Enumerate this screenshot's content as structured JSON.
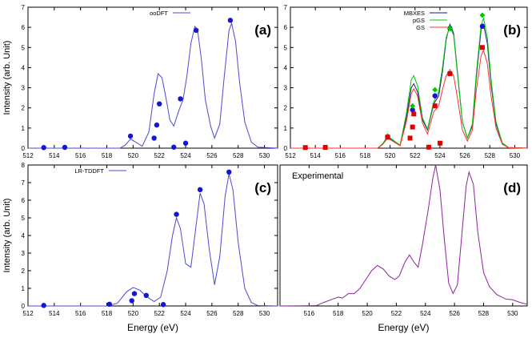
{
  "chart_data": [
    {
      "id": "a",
      "type": "line",
      "panel_label": "(a)",
      "xlabel": "",
      "ylabel": "Intensity (arb. Unit)",
      "xlim": [
        512,
        531
      ],
      "ylim": [
        0,
        7
      ],
      "xticks": [
        512,
        514,
        516,
        518,
        520,
        522,
        524,
        526,
        528,
        530
      ],
      "yticks": [
        0,
        1,
        2,
        3,
        4,
        5,
        6,
        7
      ],
      "legend_position": "top-right",
      "series": [
        {
          "name": "ooDFT",
          "kind": "line",
          "color": "#4a4ad6",
          "points": [
            [
              512,
              0
            ],
            [
              519,
              0
            ],
            [
              519.4,
              0.15
            ],
            [
              519.8,
              0.45
            ],
            [
              520.2,
              0.3
            ],
            [
              520.7,
              0.1
            ],
            [
              521.2,
              0.8
            ],
            [
              521.6,
              2.7
            ],
            [
              521.9,
              3.7
            ],
            [
              522.2,
              3.5
            ],
            [
              522.5,
              2.5
            ],
            [
              522.8,
              1.4
            ],
            [
              523.1,
              1.1
            ],
            [
              523.5,
              1.9
            ],
            [
              523.8,
              2.4
            ],
            [
              524.1,
              3.6
            ],
            [
              524.4,
              5.2
            ],
            [
              524.7,
              6.05
            ],
            [
              524.9,
              5.9
            ],
            [
              525.2,
              4.4
            ],
            [
              525.5,
              2.4
            ],
            [
              525.9,
              1.1
            ],
            [
              526.2,
              0.5
            ],
            [
              526.6,
              1.2
            ],
            [
              526.9,
              3.3
            ],
            [
              527.3,
              5.85
            ],
            [
              527.5,
              6.2
            ],
            [
              527.8,
              5.3
            ],
            [
              528.1,
              3.3
            ],
            [
              528.5,
              1.3
            ],
            [
              529,
              0.3
            ],
            [
              529.5,
              0.05
            ],
            [
              531,
              0
            ]
          ]
        },
        {
          "name": "ooDFT sticks",
          "kind": "scatter",
          "color": "#1515d6",
          "shape": "circle",
          "points": [
            [
              513.2,
              0.03
            ],
            [
              514.8,
              0.04
            ],
            [
              519.8,
              0.6
            ],
            [
              521.6,
              0.5
            ],
            [
              521.8,
              1.15
            ],
            [
              522.0,
              2.2
            ],
            [
              523.1,
              0.05
            ],
            [
              523.6,
              2.45
            ],
            [
              524.0,
              0.25
            ],
            [
              524.8,
              5.85
            ],
            [
              527.4,
              6.35
            ]
          ]
        }
      ]
    },
    {
      "id": "b",
      "type": "line",
      "panel_label": "(b)",
      "xlabel": "",
      "ylabel": "",
      "xlim": [
        512,
        531
      ],
      "ylim": [
        0,
        7
      ],
      "xticks": [
        512,
        514,
        516,
        518,
        520,
        522,
        524,
        526,
        528,
        530
      ],
      "yticks": [
        0,
        1,
        2,
        3,
        4,
        5,
        6,
        7
      ],
      "legend_position": "top-right",
      "series": [
        {
          "name": "MBXES",
          "kind": "line",
          "color": "#1a1a80",
          "points": [
            [
              512,
              0
            ],
            [
              519,
              0
            ],
            [
              519.4,
              0.2
            ],
            [
              519.8,
              0.55
            ],
            [
              520.2,
              0.4
            ],
            [
              520.8,
              0.15
            ],
            [
              521.3,
              1.5
            ],
            [
              521.7,
              3.0
            ],
            [
              521.9,
              3.2
            ],
            [
              522.2,
              2.8
            ],
            [
              522.6,
              1.4
            ],
            [
              523.0,
              0.9
            ],
            [
              523.5,
              2.2
            ],
            [
              523.9,
              2.6
            ],
            [
              524.2,
              3.8
            ],
            [
              524.5,
              5.4
            ],
            [
              524.8,
              6.15
            ],
            [
              525.1,
              5.7
            ],
            [
              525.4,
              3.8
            ],
            [
              525.8,
              1.3
            ],
            [
              526.2,
              0.5
            ],
            [
              526.6,
              1.1
            ],
            [
              526.9,
              3.4
            ],
            [
              527.3,
              5.9
            ],
            [
              527.5,
              6.15
            ],
            [
              527.8,
              5.2
            ],
            [
              528.1,
              3.2
            ],
            [
              528.5,
              1.2
            ],
            [
              529,
              0.25
            ],
            [
              529.5,
              0.03
            ],
            [
              531,
              0
            ]
          ]
        },
        {
          "name": "pGS",
          "kind": "line",
          "color": "#00c800",
          "points": [
            [
              512,
              0
            ],
            [
              519,
              0
            ],
            [
              519.4,
              0.22
            ],
            [
              519.8,
              0.6
            ],
            [
              520.2,
              0.42
            ],
            [
              520.8,
              0.15
            ],
            [
              521.3,
              1.7
            ],
            [
              521.7,
              3.4
            ],
            [
              521.9,
              3.6
            ],
            [
              522.2,
              3.1
            ],
            [
              522.6,
              1.5
            ],
            [
              523.0,
              0.95
            ],
            [
              523.5,
              2.3
            ],
            [
              523.9,
              2.8
            ],
            [
              524.2,
              4.0
            ],
            [
              524.5,
              5.5
            ],
            [
              524.8,
              6.05
            ],
            [
              525.1,
              5.6
            ],
            [
              525.4,
              3.7
            ],
            [
              525.8,
              1.3
            ],
            [
              526.2,
              0.5
            ],
            [
              526.6,
              1.2
            ],
            [
              526.9,
              3.6
            ],
            [
              527.3,
              6.1
            ],
            [
              527.5,
              6.45
            ],
            [
              527.8,
              5.5
            ],
            [
              528.1,
              3.4
            ],
            [
              528.5,
              1.3
            ],
            [
              529,
              0.27
            ],
            [
              529.5,
              0.03
            ],
            [
              531,
              0
            ]
          ]
        },
        {
          "name": "GS",
          "kind": "line",
          "color": "#ff3030",
          "points": [
            [
              512,
              0
            ],
            [
              519,
              0
            ],
            [
              519.4,
              0.18
            ],
            [
              519.8,
              0.5
            ],
            [
              520.2,
              0.35
            ],
            [
              520.8,
              0.12
            ],
            [
              521.3,
              1.3
            ],
            [
              521.7,
              2.7
            ],
            [
              521.9,
              2.95
            ],
            [
              522.2,
              2.6
            ],
            [
              522.6,
              1.25
            ],
            [
              523.0,
              0.7
            ],
            [
              523.5,
              1.8
            ],
            [
              523.9,
              2.1
            ],
            [
              524.2,
              2.9
            ],
            [
              524.5,
              3.6
            ],
            [
              524.8,
              3.9
            ],
            [
              525.1,
              3.6
            ],
            [
              525.4,
              2.5
            ],
            [
              525.8,
              0.9
            ],
            [
              526.2,
              0.35
            ],
            [
              526.6,
              0.9
            ],
            [
              526.9,
              2.8
            ],
            [
              527.3,
              4.6
            ],
            [
              527.5,
              4.85
            ],
            [
              527.8,
              4.2
            ],
            [
              528.1,
              2.6
            ],
            [
              528.5,
              1.0
            ],
            [
              529,
              0.2
            ],
            [
              529.5,
              0.02
            ],
            [
              531,
              0
            ]
          ]
        },
        {
          "name": "MBXES sticks",
          "kind": "scatter",
          "color": "#1515d6",
          "shape": "circle",
          "points": [
            [
              519.8,
              0.55
            ],
            [
              521.8,
              1.9
            ],
            [
              523.6,
              2.6
            ],
            [
              524.8,
              5.95
            ],
            [
              527.4,
              6.05
            ]
          ]
        },
        {
          "name": "pGS sticks",
          "kind": "scatter",
          "color": "#00c800",
          "shape": "diamond",
          "points": [
            [
              519.8,
              0.6
            ],
            [
              521.8,
              2.1
            ],
            [
              523.6,
              2.9
            ],
            [
              524.8,
              5.95
            ],
            [
              527.4,
              6.6
            ]
          ]
        },
        {
          "name": "GS sticks",
          "kind": "scatter",
          "color": "#e00000",
          "shape": "square",
          "points": [
            [
              513.2,
              0.03
            ],
            [
              514.8,
              0.04
            ],
            [
              519.8,
              0.55
            ],
            [
              521.6,
              0.5
            ],
            [
              521.8,
              1.05
            ],
            [
              521.9,
              1.7
            ],
            [
              523.1,
              0.05
            ],
            [
              523.6,
              2.1
            ],
            [
              524.0,
              0.25
            ],
            [
              524.8,
              3.7
            ],
            [
              527.4,
              5.0
            ]
          ]
        }
      ]
    },
    {
      "id": "c",
      "type": "line",
      "panel_label": "(c)",
      "xlabel": "Energy (eV)",
      "ylabel": "Intensity (arb. Unit)",
      "xlim": [
        512,
        531
      ],
      "ylim": [
        0,
        8
      ],
      "xticks": [
        512,
        514,
        516,
        518,
        520,
        522,
        524,
        526,
        528,
        530
      ],
      "yticks": [
        0,
        1,
        2,
        3,
        4,
        5,
        6,
        7,
        8
      ],
      "legend_position": "top-left",
      "series": [
        {
          "name": "LR-TDDFT",
          "kind": "line",
          "color": "#4a4ad6",
          "points": [
            [
              512,
              0
            ],
            [
              518,
              0
            ],
            [
              518.8,
              0.15
            ],
            [
              519.5,
              0.8
            ],
            [
              520.0,
              1.05
            ],
            [
              520.5,
              0.9
            ],
            [
              521.0,
              0.55
            ],
            [
              521.6,
              0.25
            ],
            [
              522.1,
              0.5
            ],
            [
              522.6,
              2.0
            ],
            [
              523.0,
              4.0
            ],
            [
              523.3,
              5.0
            ],
            [
              523.6,
              4.4
            ],
            [
              524.0,
              2.4
            ],
            [
              524.4,
              2.2
            ],
            [
              524.8,
              4.6
            ],
            [
              525.1,
              6.4
            ],
            [
              525.4,
              5.8
            ],
            [
              525.8,
              3.2
            ],
            [
              526.2,
              1.2
            ],
            [
              526.6,
              2.8
            ],
            [
              527.0,
              6.2
            ],
            [
              527.3,
              7.5
            ],
            [
              527.6,
              6.6
            ],
            [
              528.0,
              3.6
            ],
            [
              528.5,
              1.0
            ],
            [
              529,
              0.2
            ],
            [
              529.5,
              0.02
            ],
            [
              531,
              0
            ]
          ]
        },
        {
          "name": "LR-TDDFT sticks",
          "kind": "scatter",
          "color": "#1515d6",
          "shape": "circle",
          "points": [
            [
              513.2,
              0.03
            ],
            [
              518.2,
              0.1
            ],
            [
              519.9,
              0.3
            ],
            [
              520.1,
              0.7
            ],
            [
              521.0,
              0.6
            ],
            [
              522.3,
              0.08
            ],
            [
              523.3,
              5.2
            ],
            [
              525.1,
              6.6
            ],
            [
              527.3,
              7.6
            ]
          ]
        }
      ]
    },
    {
      "id": "d",
      "type": "line",
      "panel_label": "(d)",
      "inset_title": "Experimental",
      "xlabel": "Energy (eV)",
      "ylabel": "",
      "xlim": [
        514,
        531
      ],
      "ylim": [
        0,
        8
      ],
      "xticks": [
        516,
        518,
        520,
        522,
        524,
        526,
        528,
        530
      ],
      "yticks": [],
      "series": [
        {
          "name": "Experimental",
          "kind": "line",
          "color": "#9020a0",
          "points": [
            [
              514,
              0
            ],
            [
              516.5,
              0.02
            ],
            [
              517.0,
              0.2
            ],
            [
              517.5,
              0.35
            ],
            [
              518.0,
              0.5
            ],
            [
              518.3,
              0.45
            ],
            [
              518.7,
              0.7
            ],
            [
              519.1,
              0.7
            ],
            [
              519.5,
              1.0
            ],
            [
              519.9,
              1.5
            ],
            [
              520.3,
              2.0
            ],
            [
              520.7,
              2.3
            ],
            [
              521.1,
              2.1
            ],
            [
              521.5,
              1.7
            ],
            [
              521.9,
              1.5
            ],
            [
              522.2,
              1.7
            ],
            [
              522.6,
              2.5
            ],
            [
              522.9,
              2.9
            ],
            [
              523.2,
              2.5
            ],
            [
              523.5,
              2.2
            ],
            [
              523.8,
              3.5
            ],
            [
              524.2,
              5.5
            ],
            [
              524.5,
              7.2
            ],
            [
              524.7,
              8.0
            ],
            [
              525.0,
              6.6
            ],
            [
              525.3,
              3.8
            ],
            [
              525.6,
              1.3
            ],
            [
              525.9,
              0.7
            ],
            [
              526.2,
              1.2
            ],
            [
              526.5,
              4.0
            ],
            [
              526.8,
              6.8
            ],
            [
              527.0,
              7.6
            ],
            [
              527.3,
              6.9
            ],
            [
              527.6,
              4.2
            ],
            [
              528.0,
              1.9
            ],
            [
              528.4,
              1.1
            ],
            [
              528.9,
              0.65
            ],
            [
              529.5,
              0.4
            ],
            [
              530.0,
              0.35
            ],
            [
              530.5,
              0.2
            ],
            [
              531,
              0.1
            ]
          ]
        }
      ]
    }
  ]
}
